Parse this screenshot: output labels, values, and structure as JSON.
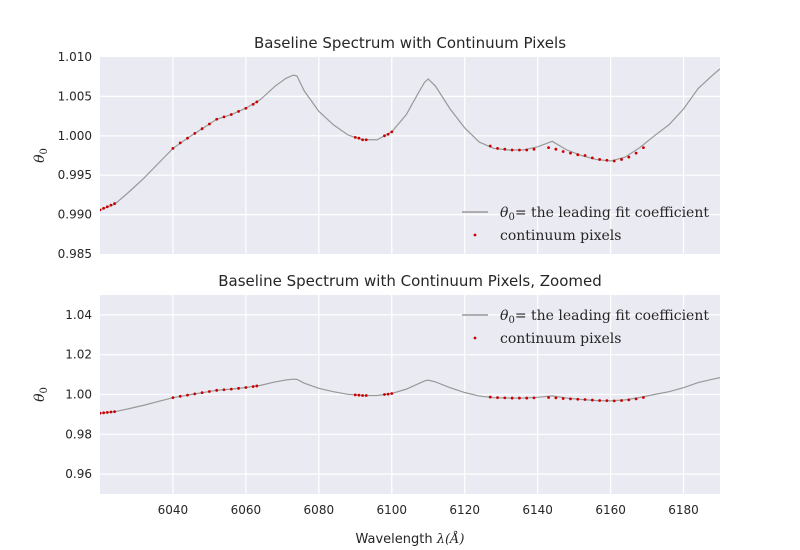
{
  "chart_data": [
    {
      "type": "line",
      "title": "Baseline Spectrum with Continuum Pixels",
      "xlabel": "",
      "ylabel": "θ0",
      "xlim": [
        6020,
        6190
      ],
      "ylim": [
        0.985,
        1.01
      ],
      "yticks": [
        "0.985",
        "0.990",
        "0.995",
        "1.000",
        "1.005",
        "1.010"
      ],
      "xticks": [],
      "grid": true,
      "legend_position": "lower-right",
      "series": [
        {
          "name": "θ0= the leading fit coefficient",
          "style": "line",
          "x": [
            6020,
            6024,
            6028,
            6032,
            6036,
            6040,
            6044,
            6048,
            6052,
            6056,
            6060,
            6064,
            6068,
            6071,
            6073,
            6074,
            6076,
            6080,
            6084,
            6088,
            6092,
            6096,
            6100,
            6104,
            6107,
            6109,
            6110,
            6112,
            6116,
            6120,
            6124,
            6128,
            6132,
            6136,
            6140,
            6144,
            6148,
            6152,
            6156,
            6160,
            6164,
            6168,
            6172,
            6176,
            6180,
            6184,
            6188,
            6190
          ],
          "y": [
            0.9906,
            0.9913,
            0.9929,
            0.9946,
            0.9965,
            0.9984,
            0.9997,
            1.0009,
            1.0021,
            1.0027,
            1.0035,
            1.0046,
            1.0063,
            1.0073,
            1.0077,
            1.0076,
            1.0057,
            1.0031,
            1.0014,
            1.0001,
            0.9995,
            0.9995,
            1.0005,
            1.0027,
            1.0052,
            1.0068,
            1.0072,
            1.0063,
            1.0034,
            1.001,
            0.9992,
            0.9984,
            0.9982,
            0.9982,
            0.9986,
            0.9993,
            0.9982,
            0.9975,
            0.997,
            0.9968,
            0.9973,
            0.9985,
            1.0,
            1.0014,
            1.0034,
            1.006,
            1.0077,
            1.0085
          ],
          "color": "#999999"
        },
        {
          "name": "continuum pixels",
          "style": "points",
          "x": [
            6020,
            6021,
            6022,
            6023,
            6024,
            6040,
            6042,
            6044,
            6046,
            6048,
            6050,
            6052,
            6054,
            6056,
            6058,
            6060,
            6062,
            6063,
            6090,
            6091,
            6092,
            6093,
            6098,
            6099,
            6100,
            6127,
            6129,
            6131,
            6133,
            6135,
            6137,
            6139,
            6143,
            6145,
            6147,
            6149,
            6151,
            6153,
            6155,
            6157,
            6159,
            6161,
            6163,
            6165,
            6167,
            6169
          ],
          "y": [
            0.9906,
            0.9908,
            0.991,
            0.9912,
            0.9914,
            0.9984,
            0.9991,
            0.9997,
            1.0003,
            1.0009,
            1.0015,
            1.0021,
            1.0024,
            1.0027,
            1.0031,
            1.0035,
            1.004,
            1.0043,
            0.9998,
            0.9997,
            0.9995,
            0.9995,
            1.0,
            1.0002,
            1.0005,
            0.9987,
            0.9984,
            0.9983,
            0.9982,
            0.9982,
            0.9982,
            0.9983,
            0.9985,
            0.9983,
            0.998,
            0.9978,
            0.9976,
            0.9975,
            0.9972,
            0.997,
            0.9969,
            0.9968,
            0.997,
            0.9973,
            0.9978,
            0.9985
          ],
          "color": "#cc0000"
        }
      ]
    },
    {
      "type": "line",
      "title": "Baseline Spectrum with Continuum Pixels, Zoomed",
      "xlabel": "Wavelength λ(Å)",
      "ylabel": "θ0",
      "xlim": [
        6020,
        6190
      ],
      "ylim": [
        0.95,
        1.05
      ],
      "yticks": [
        "0.96",
        "0.98",
        "1.00",
        "1.02",
        "1.04"
      ],
      "xticks": [
        "6040",
        "6060",
        "6080",
        "6100",
        "6120",
        "6140",
        "6160",
        "6180"
      ],
      "grid": true,
      "legend_position": "upper-right",
      "series": [
        {
          "name": "θ0= the leading fit coefficient",
          "style": "line",
          "color": "#999999",
          "same_as_panel": 0
        },
        {
          "name": "continuum pixels",
          "style": "points",
          "color": "#cc0000",
          "same_as_panel": 0
        }
      ]
    }
  ]
}
